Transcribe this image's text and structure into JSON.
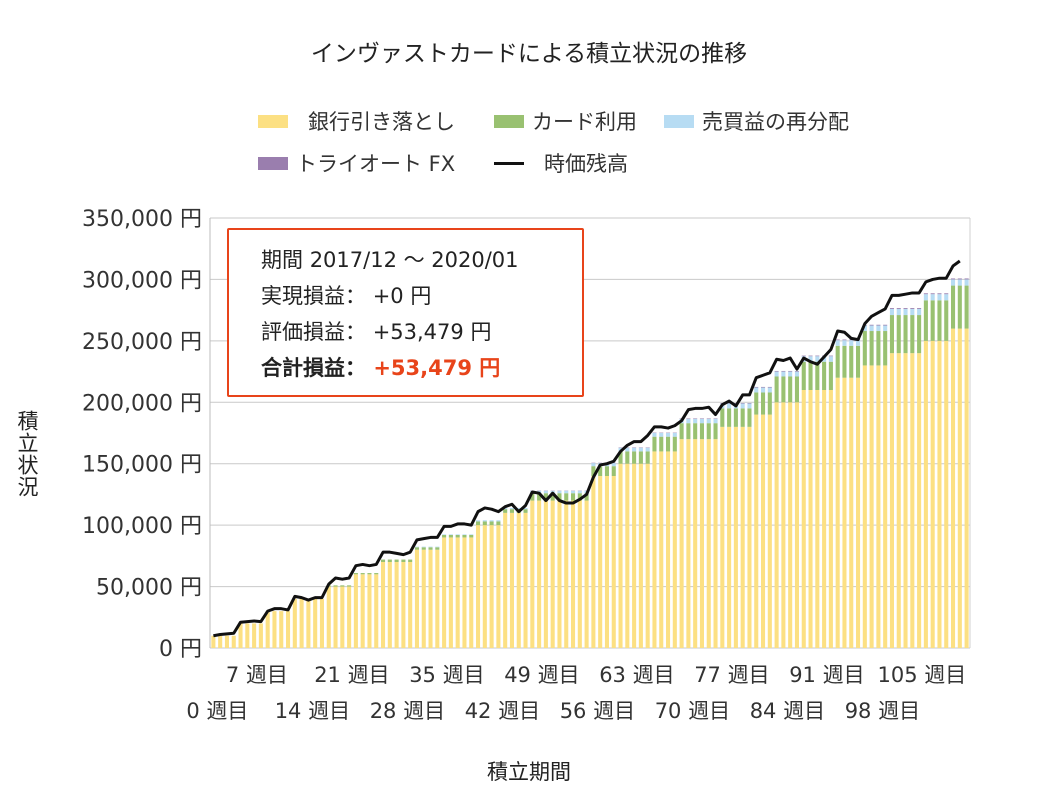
{
  "title": "インヴァストカードによる積立状況の推移",
  "legend": [
    {
      "label": "銀行引き落とし",
      "color": "#fce083",
      "kind": "bar"
    },
    {
      "label": "カード利用",
      "color": "#99c171",
      "kind": "bar"
    },
    {
      "label": "売買益の再分配",
      "color": "#b7dcf3",
      "kind": "bar"
    },
    {
      "label": "トライオート FX",
      "color": "#9a7eae",
      "kind": "bar"
    },
    {
      "label": "時価残高",
      "color": "#111111",
      "kind": "line"
    }
  ],
  "info": {
    "period_label": "期間",
    "period_value": "2017/12 ～ 2020/01",
    "realized_label": "実現損益：",
    "realized_value": "+0 円",
    "unrealized_label": "評価損益：",
    "unrealized_value": "+53,479 円",
    "total_label": "合計損益：",
    "total_value": "+53,479 円"
  },
  "chart_data": {
    "type": "bar",
    "stacked": true,
    "title": "インヴァストカードによる積立状況の推移",
    "ylabel": "積立状況",
    "xlabel": "積立期間",
    "ylim": [
      0,
      350000
    ],
    "yticks": [
      "0 円",
      "50,000 円",
      "100,000 円",
      "150,000 円",
      "200,000 円",
      "250,000 円",
      "300,000 円",
      "350,000 円"
    ],
    "xtick_labels_row1": [
      "7 週目",
      "21 週目",
      "35 週目",
      "49 週目",
      "63 週目",
      "77 週目",
      "91 週目",
      "105 週目"
    ],
    "xtick_labels_row2": [
      "0 週目",
      "14 週目",
      "28 週目",
      "42 週目",
      "56 週目",
      "70 週目",
      "84 週目",
      "98 週目"
    ],
    "weeks": 112,
    "grid": true,
    "legend_position": "top",
    "line_series": {
      "name": "時価残高",
      "points": [
        [
          0,
          10000
        ],
        [
          1,
          11000
        ],
        [
          2,
          11500
        ],
        [
          3,
          12000
        ],
        [
          4,
          21000
        ],
        [
          5,
          21500
        ],
        [
          6,
          22000
        ],
        [
          7,
          21500
        ],
        [
          8,
          30000
        ],
        [
          9,
          32000
        ],
        [
          10,
          32000
        ],
        [
          11,
          31000
        ],
        [
          12,
          42000
        ],
        [
          13,
          41000
        ],
        [
          14,
          39000
        ],
        [
          15,
          41000
        ],
        [
          16,
          41000
        ],
        [
          17,
          52000
        ],
        [
          18,
          57000
        ],
        [
          19,
          56000
        ],
        [
          20,
          57000
        ],
        [
          21,
          67000
        ],
        [
          22,
          68000
        ],
        [
          23,
          67000
        ],
        [
          24,
          68000
        ],
        [
          25,
          78000
        ],
        [
          26,
          78000
        ],
        [
          27,
          77000
        ],
        [
          28,
          76000
        ],
        [
          29,
          78000
        ],
        [
          30,
          88000
        ],
        [
          31,
          89000
        ],
        [
          32,
          90000
        ],
        [
          33,
          90000
        ],
        [
          34,
          99000
        ],
        [
          35,
          99000
        ],
        [
          36,
          101000
        ],
        [
          37,
          101000
        ],
        [
          38,
          100000
        ],
        [
          39,
          111000
        ],
        [
          40,
          114000
        ],
        [
          41,
          113000
        ],
        [
          42,
          111000
        ],
        [
          43,
          115000
        ],
        [
          44,
          117000
        ],
        [
          45,
          111000
        ],
        [
          46,
          116000
        ],
        [
          47,
          127000
        ],
        [
          48,
          126000
        ],
        [
          49,
          120000
        ],
        [
          50,
          126000
        ],
        [
          51,
          120000
        ],
        [
          52,
          118000
        ],
        [
          53,
          118000
        ],
        [
          54,
          121000
        ],
        [
          55,
          125000
        ],
        [
          56,
          139000
        ],
        [
          57,
          149000
        ],
        [
          58,
          150000
        ],
        [
          59,
          152000
        ],
        [
          60,
          160000
        ],
        [
          61,
          165000
        ],
        [
          62,
          168000
        ],
        [
          63,
          168000
        ],
        [
          64,
          173000
        ],
        [
          65,
          180000
        ],
        [
          66,
          180000
        ],
        [
          67,
          179000
        ],
        [
          68,
          181000
        ],
        [
          69,
          185000
        ],
        [
          70,
          194000
        ],
        [
          71,
          195000
        ],
        [
          72,
          195000
        ],
        [
          73,
          196000
        ],
        [
          74,
          190000
        ],
        [
          75,
          198000
        ],
        [
          76,
          201000
        ],
        [
          77,
          197000
        ],
        [
          78,
          206000
        ],
        [
          79,
          206000
        ],
        [
          80,
          220000
        ],
        [
          81,
          222000
        ],
        [
          82,
          224000
        ],
        [
          83,
          235000
        ],
        [
          84,
          234000
        ],
        [
          85,
          236000
        ],
        [
          86,
          227000
        ],
        [
          87,
          236000
        ],
        [
          88,
          233000
        ],
        [
          89,
          231000
        ],
        [
          90,
          237000
        ],
        [
          91,
          243000
        ],
        [
          92,
          258000
        ],
        [
          93,
          257000
        ],
        [
          94,
          252000
        ],
        [
          95,
          251000
        ],
        [
          96,
          264000
        ],
        [
          97,
          270000
        ],
        [
          98,
          273000
        ],
        [
          99,
          276000
        ],
        [
          100,
          287000
        ],
        [
          101,
          287000
        ],
        [
          102,
          288000
        ],
        [
          103,
          289000
        ],
        [
          104,
          289000
        ],
        [
          105,
          298000
        ],
        [
          106,
          300000
        ],
        [
          107,
          301000
        ],
        [
          108,
          301000
        ],
        [
          109,
          311000
        ],
        [
          110,
          315000
        ]
      ]
    },
    "bar_steps": {
      "bank": [
        [
          0,
          10000
        ],
        [
          4,
          20000
        ],
        [
          8,
          30000
        ],
        [
          12,
          40000
        ],
        [
          17,
          50000
        ],
        [
          21,
          60000
        ],
        [
          25,
          70000
        ],
        [
          30,
          80000
        ],
        [
          34,
          90000
        ],
        [
          39,
          100000
        ],
        [
          43,
          110000
        ],
        [
          47,
          120000
        ],
        [
          56,
          140000
        ],
        [
          60,
          150000
        ],
        [
          65,
          160000
        ],
        [
          69,
          170000
        ],
        [
          75,
          180000
        ],
        [
          80,
          190000
        ],
        [
          83,
          200000
        ],
        [
          87,
          210000
        ],
        [
          92,
          220000
        ],
        [
          96,
          230000
        ],
        [
          100,
          240000
        ],
        [
          105,
          250000
        ],
        [
          109,
          260000
        ]
      ],
      "card": [
        [
          0,
          0
        ],
        [
          17,
          1000
        ],
        [
          25,
          2000
        ],
        [
          39,
          3000
        ],
        [
          47,
          6000
        ],
        [
          56,
          8000
        ],
        [
          60,
          10000
        ],
        [
          65,
          12000
        ],
        [
          69,
          13000
        ],
        [
          75,
          15000
        ],
        [
          80,
          18000
        ],
        [
          83,
          21000
        ],
        [
          87,
          23000
        ],
        [
          92,
          26000
        ],
        [
          96,
          28000
        ],
        [
          100,
          31000
        ],
        [
          105,
          33000
        ],
        [
          109,
          35000
        ]
      ],
      "redistribution": [
        [
          0,
          0
        ],
        [
          30,
          500
        ],
        [
          39,
          1000
        ],
        [
          47,
          2000
        ],
        [
          56,
          2500
        ],
        [
          60,
          3000
        ],
        [
          69,
          3500
        ],
        [
          75,
          4000
        ],
        [
          80,
          4000
        ],
        [
          87,
          4500
        ],
        [
          92,
          4500
        ],
        [
          100,
          5000
        ],
        [
          105,
          5000
        ],
        [
          109,
          5000
        ]
      ],
      "fx": [
        [
          0,
          0
        ],
        [
          47,
          200
        ],
        [
          56,
          300
        ],
        [
          69,
          400
        ],
        [
          80,
          500
        ],
        [
          92,
          600
        ],
        [
          100,
          700
        ],
        [
          109,
          800
        ]
      ]
    }
  }
}
